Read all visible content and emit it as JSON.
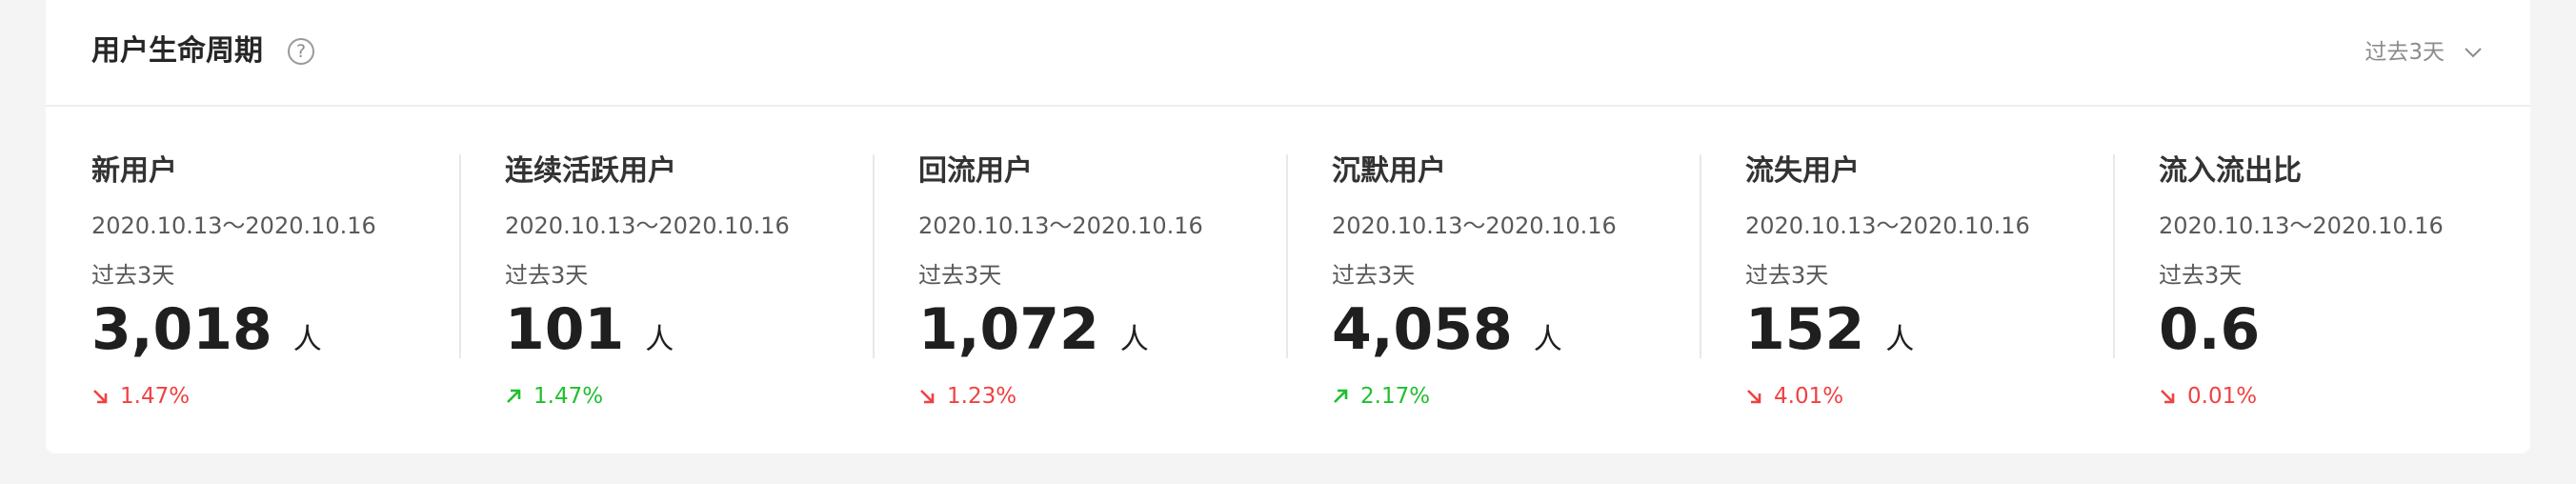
{
  "header": {
    "title": "用户生命周期",
    "help_symbol": "?",
    "range_label": "过去3天"
  },
  "colors": {
    "up": "#1fbf2f",
    "down": "#f04141"
  },
  "metrics": [
    {
      "title": "新用户",
      "date_range": "2020.10.13～2020.10.16",
      "period": "过去3天",
      "value": "3,018",
      "unit": "人",
      "change": "1.47%",
      "trend": "down",
      "trend_icon": "arrow-down-right-icon"
    },
    {
      "title": "连续活跃用户",
      "date_range": "2020.10.13～2020.10.16",
      "period": "过去3天",
      "value": "101",
      "unit": "人",
      "change": "1.47%",
      "trend": "up",
      "trend_icon": "arrow-up-right-icon"
    },
    {
      "title": "回流用户",
      "date_range": "2020.10.13～2020.10.16",
      "period": "过去3天",
      "value": "1,072",
      "unit": "人",
      "change": "1.23%",
      "trend": "down",
      "trend_icon": "arrow-down-right-icon"
    },
    {
      "title": "沉默用户",
      "date_range": "2020.10.13～2020.10.16",
      "period": "过去3天",
      "value": "4,058",
      "unit": "人",
      "change": "2.17%",
      "trend": "up",
      "trend_icon": "arrow-up-right-icon"
    },
    {
      "title": "流失用户",
      "date_range": "2020.10.13～2020.10.16",
      "period": "过去3天",
      "value": "152",
      "unit": "人",
      "change": "4.01%",
      "trend": "down",
      "trend_icon": "arrow-down-right-icon"
    },
    {
      "title": "流入流出比",
      "date_range": "2020.10.13～2020.10.16",
      "period": "过去3天",
      "value": "0.6",
      "unit": "",
      "change": "0.01%",
      "trend": "down",
      "trend_icon": "arrow-down-right-icon"
    }
  ]
}
